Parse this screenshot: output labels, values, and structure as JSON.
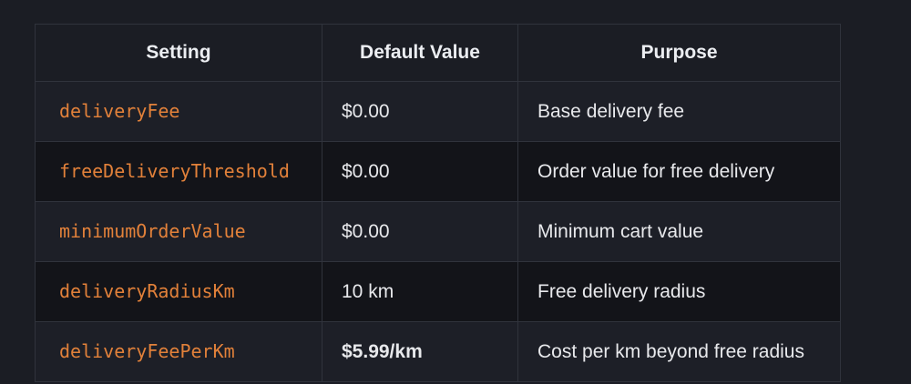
{
  "table": {
    "headers": [
      "Setting",
      "Default Value",
      "Purpose"
    ],
    "rows": [
      {
        "setting": "deliveryFee",
        "default": "$0.00",
        "purpose": "Base delivery fee"
      },
      {
        "setting": "freeDeliveryThreshold",
        "default": "$0.00",
        "purpose": "Order value for free delivery"
      },
      {
        "setting": "minimumOrderValue",
        "default": "$0.00",
        "purpose": "Minimum cart value"
      },
      {
        "setting": "deliveryRadiusKm",
        "default": "10 km",
        "purpose": "Free delivery radius"
      },
      {
        "setting": "deliveryFeePerKm",
        "default": "$5.99/km",
        "purpose": "Cost per km beyond free radius"
      }
    ]
  },
  "colors": {
    "background": "#1b1d24",
    "code_accent": "#e2813a",
    "row_alt": "#131419",
    "border": "#30333c"
  }
}
